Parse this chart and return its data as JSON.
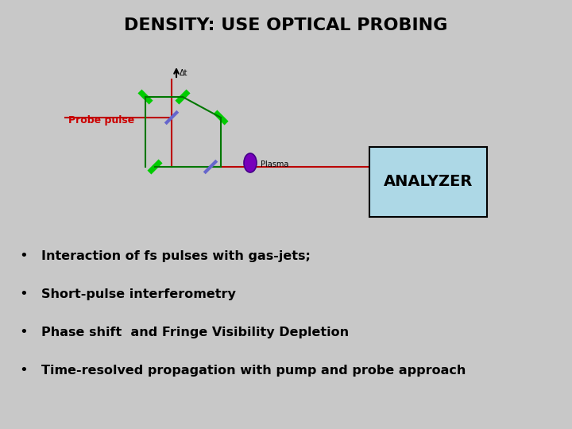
{
  "title": "DENSITY: USE OPTICAL PROBING",
  "bg_color": "#c8c8c8",
  "title_fontsize": 16,
  "bullet_points": [
    "Interaction of fs pulses with gas-jets;",
    "Short-pulse interferometry",
    "Phase shift  and Fringe Visibility Depletion",
    "Time-resolved propagation with pump and probe approach"
  ],
  "probe_pulse_label": "Probe pulse",
  "delta_t_label": "Δt",
  "plasma_label": "Plasma",
  "analyzer_label": "ANALYZER",
  "mirror_color": "#00cc00",
  "beamsplitter_color": "#6666cc",
  "beam_color_red": "#bb0000",
  "beam_color_green": "#007700",
  "plasma_color": "#7700bb",
  "plasma_edge": "#440088",
  "analyzer_bg": "#add8e6",
  "analyzer_border": "#000000",
  "probe_label_color": "#cc0000",
  "arrow_color": "#000000",
  "bullet_color": "#000000",
  "text_color": "#000000"
}
